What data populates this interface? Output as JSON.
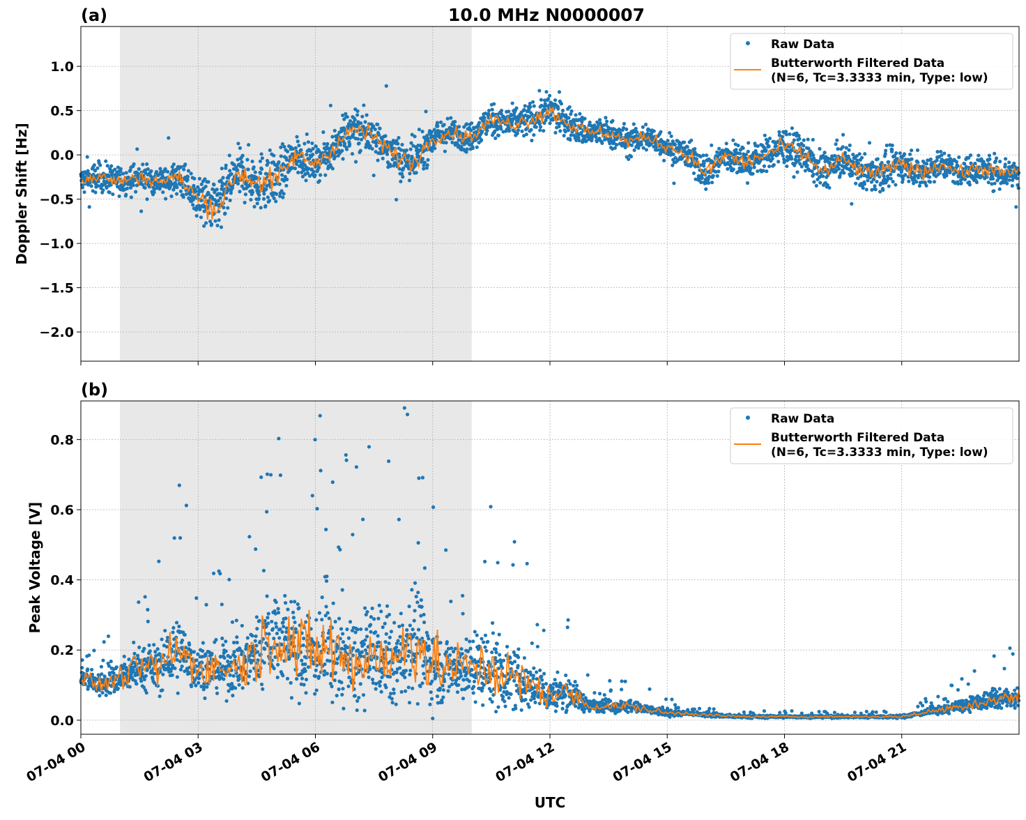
{
  "figure_title": "10.0 MHz N0000007",
  "xlabel": "UTC",
  "legend": {
    "raw": "Raw Data",
    "filtered_line1": "Butterworth Filtered Data",
    "filtered_line2": "(N=6, Tc=3.3333 min, Type: low)"
  },
  "colors": {
    "raw": "#1f77b4",
    "filtered": "#ff7f0e",
    "shade": "#e8e8e8",
    "grid": "#b0b0b0"
  },
  "chart_data": [
    {
      "type": "scatter",
      "panel_label": "(a)",
      "ylabel": "Doppler Shift [Hz]",
      "xlim": [
        "07-04 00:00",
        "07-05 00:00"
      ],
      "ylim": [
        -2.33,
        1.45
      ],
      "grid": true,
      "legend_placement": "top-right",
      "shaded_interval": [
        "07-04 01:00",
        "07-04 10:00"
      ],
      "x_ticks": [
        "07-04 00",
        "07-04 03",
        "07-04 06",
        "07-04 09",
        "07-04 12",
        "07-04 15",
        "07-04 18",
        "07-04 21"
      ],
      "x_tick_hours": [
        0,
        3,
        6,
        9,
        12,
        15,
        18,
        21
      ],
      "y_ticks": [
        -2.0,
        -1.5,
        -1.0,
        -0.5,
        0.0,
        0.5,
        1.0
      ],
      "x_hours": [
        0,
        0.5,
        1,
        1.5,
        2,
        2.5,
        3,
        3.5,
        4,
        4.5,
        5,
        5.5,
        6,
        6.5,
        7,
        7.5,
        8,
        8.5,
        9,
        9.5,
        10,
        10.5,
        11,
        11.5,
        12,
        12.5,
        13,
        13.5,
        14,
        14.5,
        15,
        15.5,
        16,
        16.5,
        17,
        17.5,
        18,
        18.5,
        19,
        19.5,
        20,
        20.5,
        21,
        21.5,
        22,
        22.5,
        23,
        23.5,
        24
      ],
      "filtered": [
        -0.3,
        -0.25,
        -0.3,
        -0.25,
        -0.3,
        -0.25,
        -0.5,
        -0.6,
        -0.2,
        -0.3,
        -0.3,
        0.0,
        -0.1,
        0.1,
        0.3,
        0.2,
        0.0,
        -0.1,
        0.2,
        0.25,
        0.2,
        0.4,
        0.35,
        0.4,
        0.5,
        0.35,
        0.25,
        0.25,
        0.15,
        0.2,
        0.1,
        0.0,
        -0.2,
        0.0,
        -0.1,
        0.0,
        0.1,
        0.0,
        -0.2,
        -0.05,
        -0.2,
        -0.2,
        -0.1,
        -0.2,
        -0.1,
        -0.2,
        -0.15,
        -0.2,
        -0.2
      ],
      "raw_spread": [
        0.3,
        0.3,
        0.3,
        0.3,
        0.3,
        0.35,
        0.5,
        0.6,
        0.5,
        0.6,
        0.6,
        0.4,
        0.35,
        0.4,
        0.5,
        0.4,
        0.4,
        0.45,
        0.35,
        0.3,
        0.3,
        0.35,
        0.35,
        0.35,
        0.4,
        0.35,
        0.3,
        0.3,
        0.3,
        0.3,
        0.3,
        0.3,
        0.4,
        0.35,
        0.35,
        0.35,
        0.4,
        0.35,
        0.4,
        0.35,
        0.35,
        0.4,
        0.35,
        0.35,
        0.3,
        0.3,
        0.3,
        0.35,
        0.3
      ]
    },
    {
      "type": "scatter",
      "panel_label": "(b)",
      "ylabel": "Peak Voltage [V]",
      "xlim": [
        "07-04 00:00",
        "07-05 00:00"
      ],
      "ylim": [
        -0.04,
        0.91
      ],
      "grid": true,
      "legend_placement": "top-right",
      "shaded_interval": [
        "07-04 01:00",
        "07-04 10:00"
      ],
      "x_ticks": [
        "07-04 00",
        "07-04 03",
        "07-04 06",
        "07-04 09",
        "07-04 12",
        "07-04 15",
        "07-04 18",
        "07-04 21"
      ],
      "x_tick_hours": [
        0,
        3,
        6,
        9,
        12,
        15,
        18,
        21
      ],
      "y_ticks": [
        0.0,
        0.2,
        0.4,
        0.6,
        0.8
      ],
      "x_hours": [
        0,
        0.5,
        1,
        1.5,
        2,
        2.5,
        3,
        3.5,
        4,
        4.5,
        5,
        5.5,
        6,
        6.5,
        7,
        7.5,
        8,
        8.5,
        9,
        9.5,
        10,
        10.5,
        11,
        11.5,
        12,
        12.5,
        13,
        13.5,
        14,
        14.5,
        15,
        15.5,
        16,
        16.5,
        17,
        17.5,
        18,
        18.5,
        19,
        19.5,
        20,
        20.5,
        21,
        21.5,
        22,
        22.5,
        23,
        23.5,
        24
      ],
      "filtered": [
        0.12,
        0.1,
        0.12,
        0.15,
        0.15,
        0.2,
        0.15,
        0.15,
        0.15,
        0.2,
        0.25,
        0.2,
        0.2,
        0.2,
        0.15,
        0.2,
        0.15,
        0.25,
        0.15,
        0.15,
        0.15,
        0.15,
        0.12,
        0.1,
        0.07,
        0.08,
        0.04,
        0.04,
        0.04,
        0.03,
        0.02,
        0.02,
        0.015,
        0.012,
        0.01,
        0.01,
        0.01,
        0.01,
        0.01,
        0.01,
        0.01,
        0.01,
        0.01,
        0.02,
        0.03,
        0.04,
        0.05,
        0.06,
        0.07
      ],
      "raw_spread": [
        0.08,
        0.07,
        0.1,
        0.12,
        0.15,
        0.25,
        0.15,
        0.15,
        0.18,
        0.25,
        0.3,
        0.3,
        0.3,
        0.35,
        0.3,
        0.3,
        0.25,
        0.4,
        0.25,
        0.2,
        0.2,
        0.25,
        0.2,
        0.15,
        0.1,
        0.1,
        0.04,
        0.04,
        0.04,
        0.03,
        0.02,
        0.015,
        0.012,
        0.01,
        0.008,
        0.008,
        0.008,
        0.008,
        0.008,
        0.008,
        0.008,
        0.008,
        0.01,
        0.015,
        0.03,
        0.04,
        0.05,
        0.06,
        0.07
      ]
    }
  ]
}
